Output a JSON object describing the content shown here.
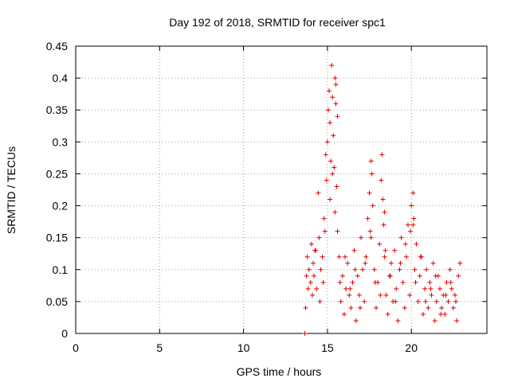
{
  "chart_data": {
    "type": "scatter",
    "title": "Day 192 of 2018, SRMTID for receiver spc1",
    "xlabel": "GPS time / hours",
    "ylabel": "SRMTID / TECUs",
    "xlim": [
      0,
      24.5
    ],
    "ylim": [
      0,
      0.45
    ],
    "x_ticks": [
      "0",
      "5",
      "10",
      "15",
      "20"
    ],
    "y_ticks": [
      "0",
      "0.05",
      "0.1",
      "0.15",
      "0.2",
      "0.25",
      "0.3",
      "0.35",
      "0.4",
      "0.45"
    ],
    "grid": true,
    "marker": "+",
    "series": [
      {
        "name": "spc1",
        "color": "#e00000",
        "x": [
          13.65,
          13.7,
          13.8,
          13.9,
          14.0,
          14.05,
          14.1,
          14.15,
          14.2,
          14.3,
          14.35,
          14.45,
          14.5,
          14.6,
          14.7,
          14.75,
          14.8,
          14.9,
          14.95,
          15.0,
          15.05,
          15.1,
          15.15,
          15.2,
          15.25,
          15.3,
          15.35,
          15.4,
          15.45,
          15.5,
          15.55,
          15.6,
          15.7,
          15.8,
          15.9,
          16.0,
          16.1,
          16.2,
          16.3,
          16.4,
          16.5,
          16.6,
          16.7,
          16.8,
          16.9,
          17.0,
          17.1,
          17.2,
          17.3,
          17.4,
          17.5,
          17.6,
          17.65,
          17.7,
          17.8,
          17.9,
          18.0,
          18.1,
          18.2,
          18.25,
          18.3,
          18.35,
          18.4,
          18.5,
          18.6,
          18.7,
          18.8,
          18.9,
          19.0,
          19.1,
          19.2,
          19.3,
          19.4,
          19.5,
          19.6,
          19.7,
          19.8,
          19.9,
          20.0,
          20.1,
          20.15,
          20.2,
          20.3,
          20.4,
          20.5,
          20.6,
          20.7,
          20.8,
          20.9,
          21.0,
          21.1,
          21.2,
          21.3,
          21.4,
          21.5,
          21.6,
          21.7,
          21.8,
          21.9,
          22.0,
          22.1,
          22.2,
          22.3,
          22.4,
          22.5,
          22.6,
          22.7,
          22.8,
          22.9,
          13.75,
          13.85,
          14.25,
          14.55,
          14.85,
          15.15,
          15.45,
          15.75,
          16.05,
          16.35,
          16.65,
          16.95,
          17.25,
          17.55,
          17.85,
          18.15,
          18.45,
          18.75,
          19.05,
          19.35,
          19.65,
          19.95,
          20.25,
          20.55,
          20.85,
          21.15,
          21.45,
          21.75,
          22.05,
          22.35,
          22.65,
          15.3,
          15.5,
          15.6,
          17.6,
          18.4,
          20.1
        ],
        "y": [
          0.0,
          0.04,
          0.12,
          0.1,
          0.08,
          0.14,
          0.06,
          0.11,
          0.09,
          0.13,
          0.07,
          0.22,
          0.15,
          0.1,
          0.12,
          0.08,
          0.18,
          0.28,
          0.24,
          0.3,
          0.35,
          0.38,
          0.33,
          0.27,
          0.42,
          0.37,
          0.31,
          0.26,
          0.4,
          0.36,
          0.23,
          0.16,
          0.12,
          0.05,
          0.09,
          0.03,
          0.07,
          0.11,
          0.06,
          0.04,
          0.08,
          0.13,
          0.02,
          0.09,
          0.06,
          0.15,
          0.1,
          0.05,
          0.12,
          0.18,
          0.22,
          0.27,
          0.25,
          0.2,
          0.1,
          0.04,
          0.08,
          0.14,
          0.24,
          0.28,
          0.21,
          0.17,
          0.12,
          0.06,
          0.03,
          0.09,
          0.11,
          0.05,
          0.13,
          0.07,
          0.02,
          0.1,
          0.15,
          0.08,
          0.04,
          0.12,
          0.17,
          0.06,
          0.2,
          0.22,
          0.18,
          0.1,
          0.14,
          0.05,
          0.09,
          0.12,
          0.03,
          0.07,
          0.1,
          0.04,
          0.08,
          0.06,
          0.11,
          0.02,
          0.05,
          0.09,
          0.07,
          0.04,
          0.06,
          0.03,
          0.08,
          0.05,
          0.1,
          0.07,
          0.04,
          0.06,
          0.02,
          0.09,
          0.11,
          0.09,
          0.07,
          0.13,
          0.05,
          0.16,
          0.21,
          0.19,
          0.08,
          0.12,
          0.07,
          0.1,
          0.04,
          0.11,
          0.16,
          0.08,
          0.06,
          0.13,
          0.09,
          0.05,
          0.11,
          0.14,
          0.16,
          0.08,
          0.12,
          0.05,
          0.07,
          0.09,
          0.03,
          0.06,
          0.08,
          0.05,
          0.25,
          0.39,
          0.34,
          0.15,
          0.19,
          0.17
        ]
      }
    ]
  }
}
